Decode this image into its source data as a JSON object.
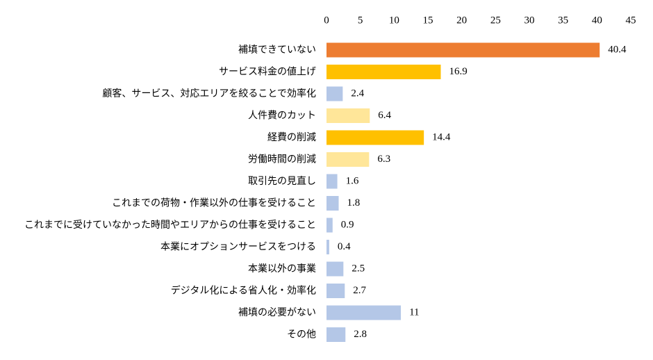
{
  "chart_data": {
    "type": "bar",
    "orientation": "horizontal",
    "categories": [
      "補填できていない",
      "サービス料金の値上げ",
      "顧客、サービス、対応エリアを絞ることで効率化",
      "人件費のカット",
      "経費の削減",
      "労働時間の削減",
      "取引先の見直し",
      "これまでの荷物・作業以外の仕事を受けること",
      "これまでに受けていなかった時間やエリアからの仕事を受けること",
      "本業にオプションサービスをつける",
      "本業以外の事業",
      "デジタル化による省人化・効率化",
      "補填の必要がない",
      "その他"
    ],
    "values": [
      40.4,
      16.9,
      2.4,
      6.4,
      14.4,
      6.3,
      1.6,
      1.8,
      0.9,
      0.4,
      2.5,
      2.7,
      11,
      2.8
    ],
    "colors": [
      "#ed7d31",
      "#ffc000",
      "#b4c7e7",
      "#ffe699",
      "#ffc000",
      "#ffe699",
      "#b4c7e7",
      "#b4c7e7",
      "#b4c7e7",
      "#b4c7e7",
      "#b4c7e7",
      "#b4c7e7",
      "#b4c7e7",
      "#b4c7e7"
    ],
    "xlim": [
      0,
      45
    ],
    "xticks": [
      0,
      5,
      10,
      15,
      20,
      25,
      30,
      35,
      40,
      45
    ],
    "axis_position": "top",
    "grid": false
  }
}
